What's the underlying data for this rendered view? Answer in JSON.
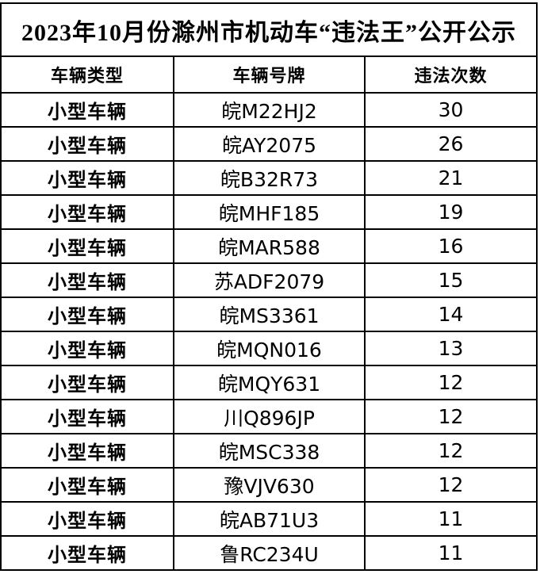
{
  "title": "2023年10月份滁州市机动车“违法王”公开公示",
  "colors": {
    "background": "#ffffff",
    "border": "#000000",
    "text": "#000000"
  },
  "table": {
    "headers": [
      "车辆类型",
      "车辆号牌",
      "违法次数"
    ],
    "rows": [
      {
        "type": "小型车辆",
        "plate": "皖M22HJ2",
        "count": "30"
      },
      {
        "type": "小型车辆",
        "plate": "皖AY2075",
        "count": "26"
      },
      {
        "type": "小型车辆",
        "plate": "皖B32R73",
        "count": "21"
      },
      {
        "type": "小型车辆",
        "plate": "皖MHF185",
        "count": "19"
      },
      {
        "type": "小型车辆",
        "plate": "皖MAR588",
        "count": "16"
      },
      {
        "type": "小型车辆",
        "plate": "苏ADF2079",
        "count": "15"
      },
      {
        "type": "小型车辆",
        "plate": "皖MS3361",
        "count": "14"
      },
      {
        "type": "小型车辆",
        "plate": "皖MQN016",
        "count": "13"
      },
      {
        "type": "小型车辆",
        "plate": "皖MQY631",
        "count": "12"
      },
      {
        "type": "小型车辆",
        "plate": "川Q896JP",
        "count": "12"
      },
      {
        "type": "小型车辆",
        "plate": "皖MSC338",
        "count": "12"
      },
      {
        "type": "小型车辆",
        "plate": "豫VJV630",
        "count": "12"
      },
      {
        "type": "小型车辆",
        "plate": "皖AB71U3",
        "count": "11"
      },
      {
        "type": "小型车辆",
        "plate": "鲁RC234U",
        "count": "11"
      }
    ]
  }
}
